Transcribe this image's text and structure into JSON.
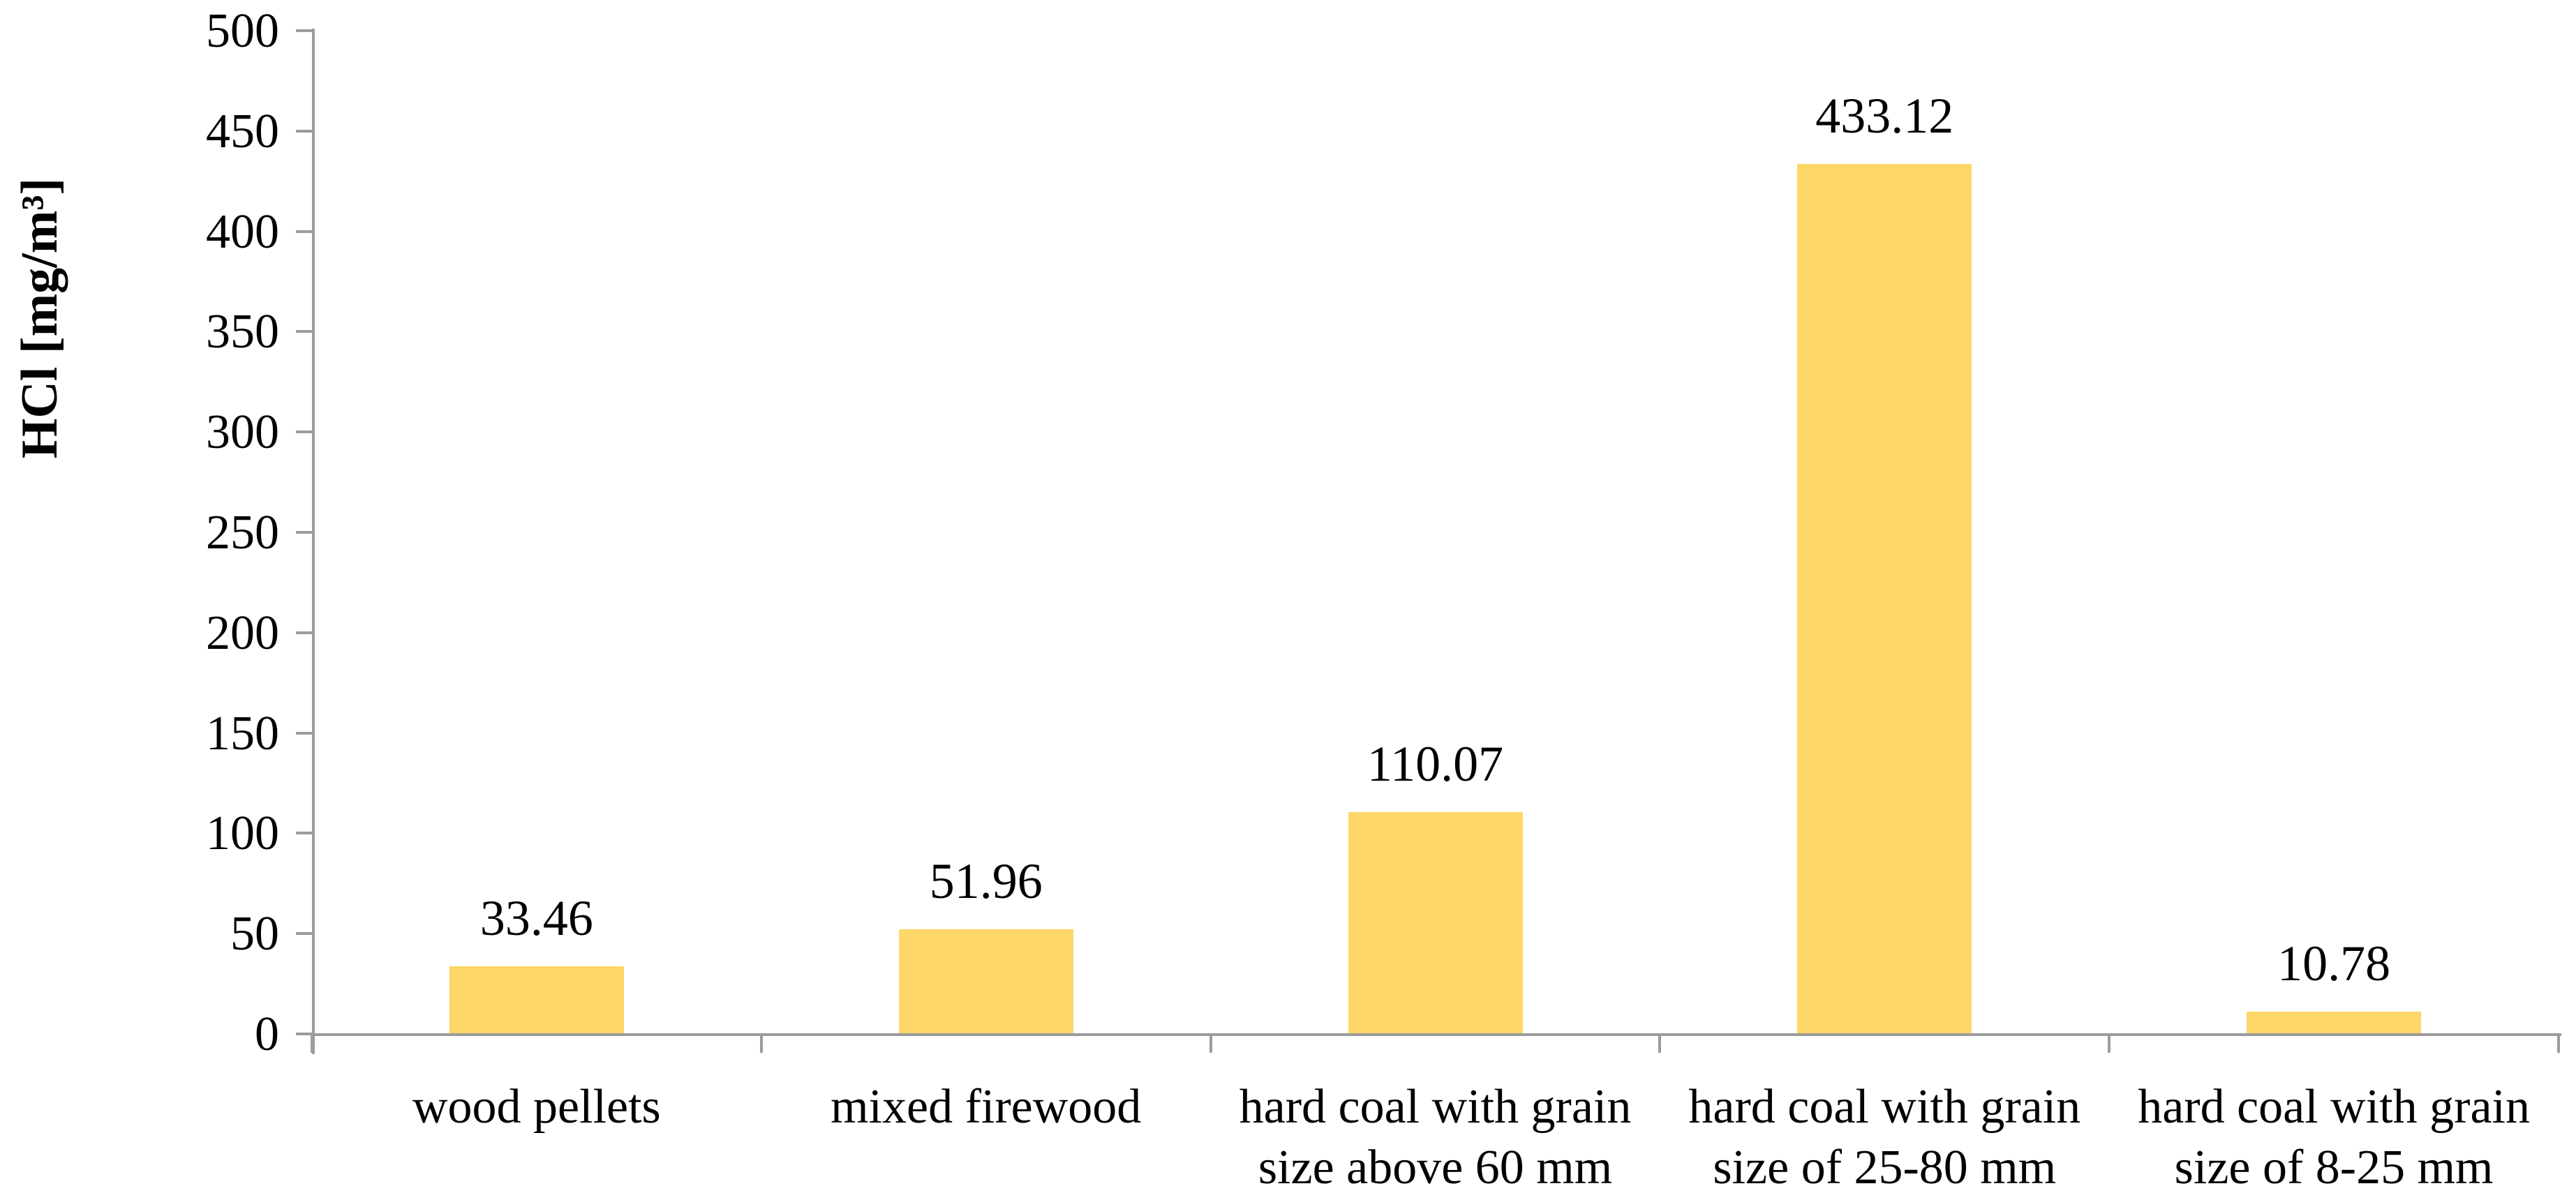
{
  "chart_data": {
    "type": "bar",
    "title": "",
    "ylabel": "HCl [mg/m³]",
    "xlabel": "",
    "ylim": [
      0,
      500
    ],
    "ytick_step": 50,
    "ytick_labels": [
      "0",
      "50",
      "100",
      "150",
      "200",
      "250",
      "300",
      "350",
      "400",
      "450",
      "500"
    ],
    "grid": false,
    "legend": "none",
    "bar_color": "#FDD768",
    "axis_color": "#9C9C9C",
    "text_color": "#000000",
    "categories": [
      "wood pellets",
      "mixed firewood",
      "hard coal with grain size above 60 mm",
      "hard coal with grain size of 25-80 mm",
      "hard coal with grain size of 8-25 mm"
    ],
    "category_lines": [
      [
        "wood pellets"
      ],
      [
        "mixed firewood"
      ],
      [
        "hard coal with grain",
        "size above 60 mm"
      ],
      [
        "hard coal with grain",
        "size of 25-80 mm"
      ],
      [
        "hard coal with grain",
        "size of 8-25 mm"
      ]
    ],
    "values": [
      33.46,
      51.96,
      110.07,
      433.12,
      10.78
    ],
    "value_labels": [
      "33.46",
      "51.96",
      "110.07",
      "433.12",
      "10.78"
    ]
  }
}
